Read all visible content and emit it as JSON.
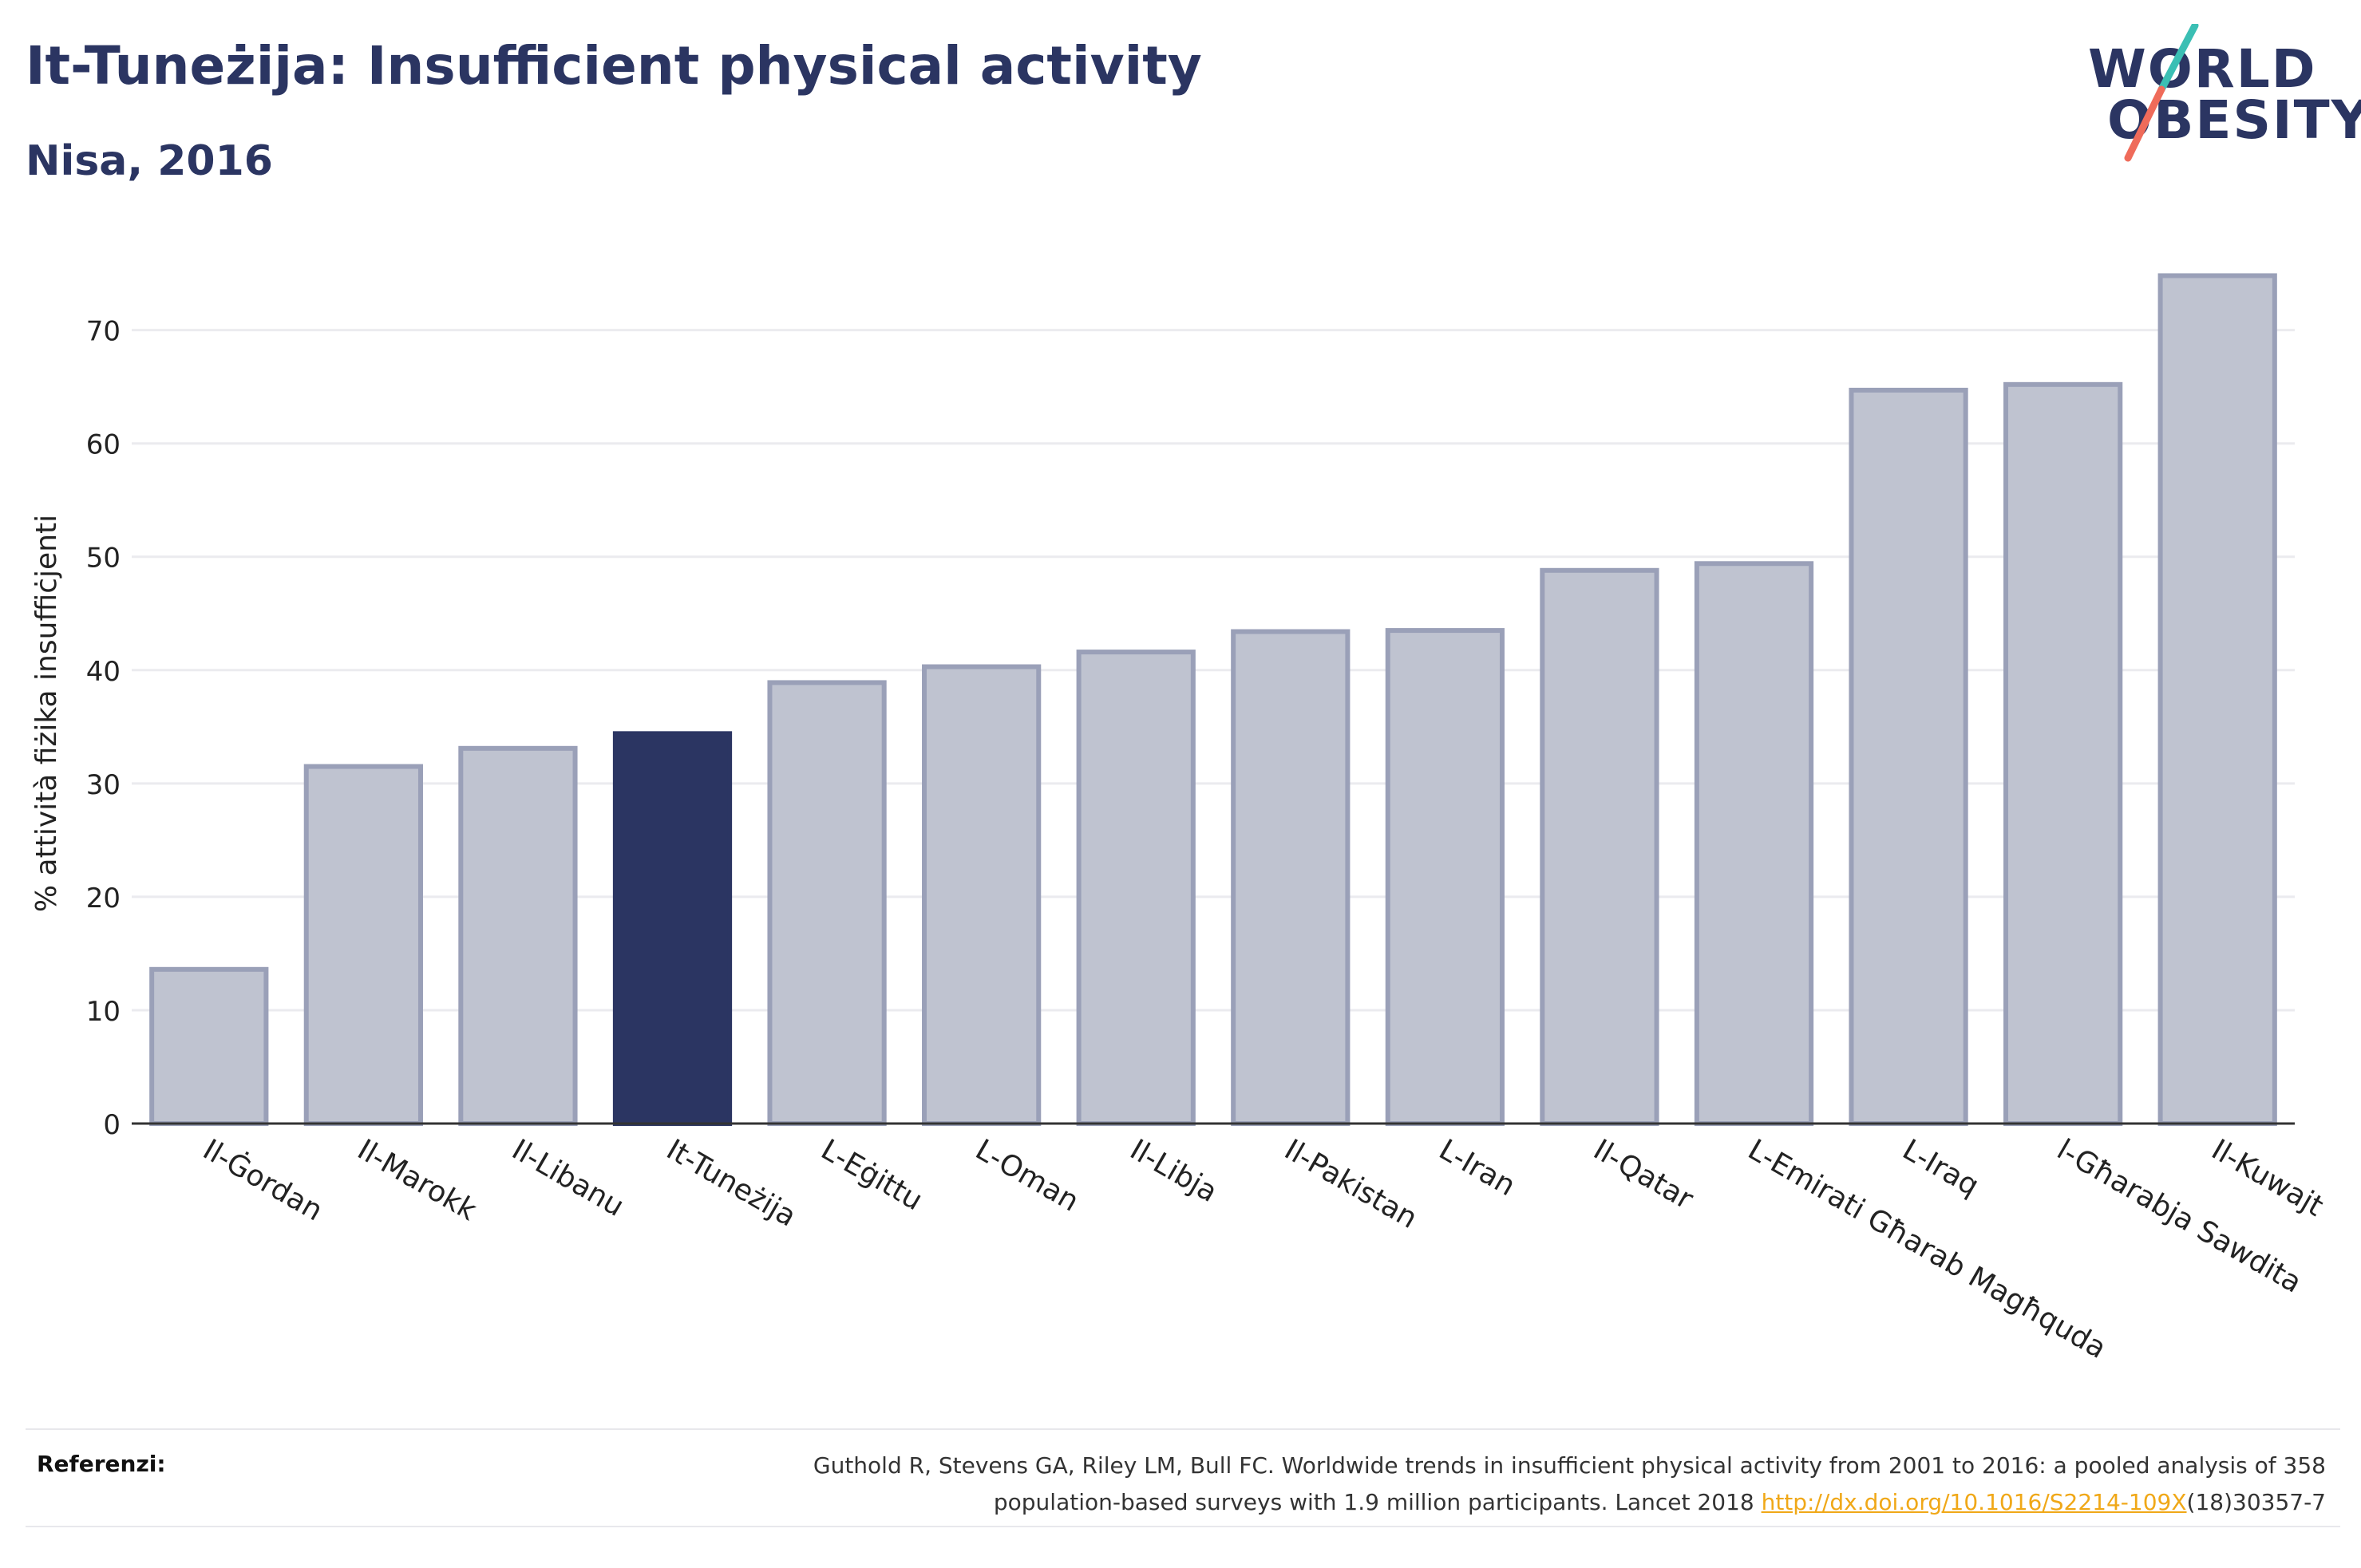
{
  "header": {
    "title": "It-Tuneżija: Insufficient physical activity",
    "subtitle": "Nisa, 2016"
  },
  "logo": {
    "line1": "WORLD",
    "line2": "OBESITY",
    "colors": {
      "text": "#2b3562",
      "slash_top": "#3bbfb4",
      "slash_bottom": "#ef6b5a"
    }
  },
  "chart_data": {
    "type": "bar",
    "categories": [
      "Il-Ġordan",
      "Il-Marokk",
      "Il-Libanu",
      "It-Tuneżija",
      "L-Eġittu",
      "L-Oman",
      "Il-Libja",
      "Il-Pakistan",
      "L-Iran",
      "Il-Qatar",
      "L-Emirati Għarab Magħquda",
      "L-Iraq",
      "l-Għarabja Sawdita",
      "Il-Kuwajt"
    ],
    "values": [
      13.6,
      31.5,
      33.1,
      34.4,
      38.9,
      40.3,
      41.6,
      43.4,
      43.5,
      48.8,
      49.4,
      64.7,
      65.2,
      74.8
    ],
    "highlight": "It-Tuneżija",
    "ylabel": "% attività fiżika insuffiċjenti",
    "xlabel": "",
    "ylim": [
      0,
      78
    ],
    "yticks": [
      0,
      10,
      20,
      30,
      40,
      50,
      60,
      70
    ],
    "grid": true,
    "colors": {
      "bar": "#bfc3d0",
      "bar_edge": "#9aa0b8",
      "highlight": "#2b3562",
      "grid": "#ebebef",
      "axis": "#333333"
    }
  },
  "footer": {
    "ref_label": "Referenzi:",
    "ref_line1": "Guthold R, Stevens GA, Riley LM, Bull FC. Worldwide trends in insufficient physical activity from 2001 to 2016: a pooled analysis of 358",
    "ref_line2_pre": "population-based surveys with 1.9 million participants. Lancet 2018 ",
    "ref_link": "http://dx.doi.org/10.1016/S2214-109X",
    "ref_line2_post": "(18)30357-7"
  }
}
